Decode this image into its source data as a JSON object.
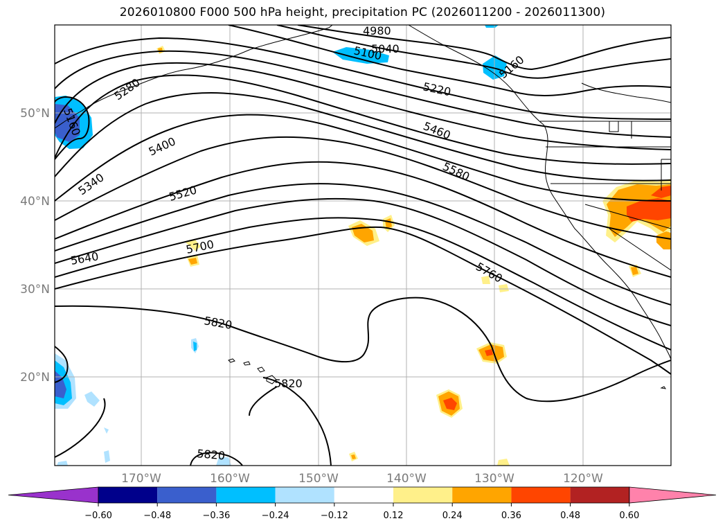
{
  "title": "2026010800 F000 500 hPa height, precipitation PC (2026011200 - 2026011300)",
  "map": {
    "lat_labels": [
      "50°N",
      "40°N",
      "30°N",
      "20°N"
    ],
    "lon_labels": [
      "170°W",
      "160°W",
      "150°W",
      "140°W",
      "130°W",
      "120°W"
    ],
    "contour_labels": [
      "4980",
      "5040",
      "5100",
      "5160",
      "5160",
      "5220",
      "5280",
      "5340",
      "5400",
      "5460",
      "5520",
      "5580",
      "5640",
      "5700",
      "5760",
      "5820",
      "5820",
      "5820"
    ]
  },
  "colorbar": {
    "ticks": [
      "−0.60",
      "−0.48",
      "−0.36",
      "−0.24",
      "−0.12",
      "0.12",
      "0.24",
      "0.36",
      "0.48",
      "0.60"
    ],
    "colors": [
      "#9932cc",
      "#00008b",
      "#3a5fcd",
      "#00bfff",
      "#b0e2ff",
      "#ffffff",
      "#fff08a",
      "#ffa500",
      "#ff4500",
      "#b22222",
      "#ff82ab"
    ]
  },
  "colors": {
    "contour": "#000000",
    "coast": "#000000",
    "grid": "#b0b0b0"
  }
}
